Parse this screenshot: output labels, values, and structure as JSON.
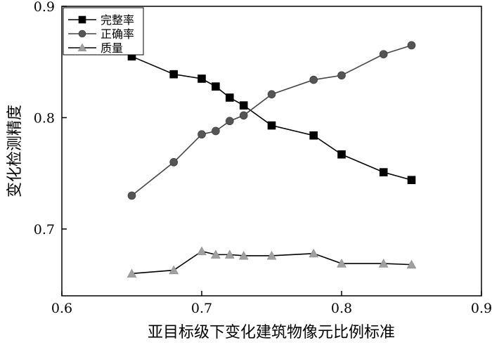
{
  "chart_data": {
    "type": "line",
    "xlabel": "亚目标级下变化建筑物像元比例标准",
    "ylabel": "变化检测精度",
    "xlim": [
      0.6,
      0.9
    ],
    "ylim": [
      0.64,
      0.9
    ],
    "xticks": [
      0.6,
      0.7,
      0.8,
      0.9
    ],
    "xtick_labels": [
      "0.6",
      "0.7",
      "0.8",
      "0.9"
    ],
    "yticks": [
      0.7,
      0.8,
      0.9
    ],
    "ytick_labels": [
      "0.7",
      "0.8",
      "0.9"
    ],
    "grid": false,
    "legend_position": "top-left",
    "series": [
      {
        "name": "完整率",
        "marker": "square",
        "color": "#000000",
        "line_color": "#000000",
        "x": [
          0.65,
          0.68,
          0.7,
          0.71,
          0.72,
          0.73,
          0.75,
          0.78,
          0.8,
          0.83,
          0.85
        ],
        "y": [
          0.855,
          0.839,
          0.835,
          0.828,
          0.818,
          0.811,
          0.793,
          0.784,
          0.767,
          0.751,
          0.744
        ]
      },
      {
        "name": "正确率",
        "marker": "circle",
        "color": "#555555",
        "line_color": "#444444",
        "x": [
          0.65,
          0.68,
          0.7,
          0.71,
          0.72,
          0.73,
          0.75,
          0.78,
          0.8,
          0.83,
          0.85
        ],
        "y": [
          0.73,
          0.76,
          0.785,
          0.788,
          0.797,
          0.802,
          0.821,
          0.834,
          0.838,
          0.857,
          0.865
        ]
      },
      {
        "name": "质量",
        "marker": "triangle",
        "color": "#a0a0a0",
        "line_color": "#000000",
        "x": [
          0.65,
          0.68,
          0.7,
          0.71,
          0.72,
          0.73,
          0.75,
          0.78,
          0.8,
          0.83,
          0.85
        ],
        "y": [
          0.66,
          0.663,
          0.68,
          0.677,
          0.677,
          0.676,
          0.676,
          0.678,
          0.669,
          0.669,
          0.668
        ]
      }
    ]
  }
}
